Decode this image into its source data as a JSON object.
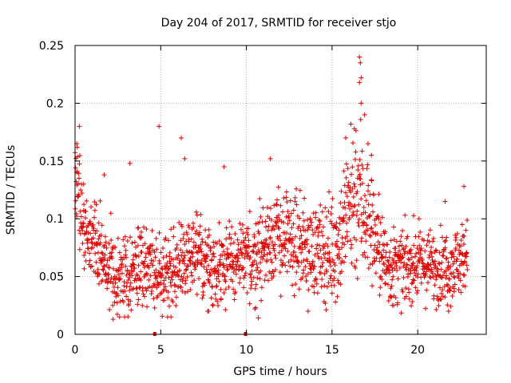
{
  "chart_data": {
    "type": "scatter",
    "title": "Day 204 of 2017, SRMTID for receiver stjo",
    "xlabel": "GPS time / hours",
    "ylabel": "SRMTID / TECUs",
    "xlim": [
      0,
      24
    ],
    "ylim": [
      0,
      0.25
    ],
    "x_ticks": [
      0,
      5,
      10,
      15,
      20
    ],
    "x_tick_labels": [
      "0",
      "5",
      "10",
      "15",
      "20"
    ],
    "y_ticks": [
      0,
      0.05,
      0.1,
      0.15,
      0.2,
      0.25
    ],
    "y_tick_labels": [
      "0",
      "0.05",
      "0.1",
      "0.15",
      "0.2",
      "0.25"
    ],
    "grid": true,
    "marker": "plus",
    "color": "#e00000",
    "data_end_hour": 22.9,
    "zero_points": [
      [
        4.65,
        0.0
      ],
      [
        9.95,
        0.0
      ]
    ],
    "profile": [
      [
        0.0,
        0.125
      ],
      [
        0.5,
        0.095
      ],
      [
        1.0,
        0.085
      ],
      [
        1.5,
        0.07
      ],
      [
        2.0,
        0.06
      ],
      [
        2.5,
        0.05
      ],
      [
        3.0,
        0.052
      ],
      [
        3.5,
        0.058
      ],
      [
        4.0,
        0.058
      ],
      [
        4.5,
        0.06
      ],
      [
        5.0,
        0.058
      ],
      [
        5.5,
        0.052
      ],
      [
        6.0,
        0.058
      ],
      [
        6.5,
        0.065
      ],
      [
        7.0,
        0.07
      ],
      [
        7.5,
        0.065
      ],
      [
        8.0,
        0.058
      ],
      [
        8.5,
        0.06
      ],
      [
        9.0,
        0.062
      ],
      [
        9.5,
        0.06
      ],
      [
        10.0,
        0.065
      ],
      [
        10.5,
        0.068
      ],
      [
        11.0,
        0.075
      ],
      [
        11.5,
        0.085
      ],
      [
        12.0,
        0.085
      ],
      [
        12.5,
        0.08
      ],
      [
        13.0,
        0.078
      ],
      [
        13.5,
        0.075
      ],
      [
        14.0,
        0.072
      ],
      [
        14.5,
        0.07
      ],
      [
        15.0,
        0.075
      ],
      [
        15.5,
        0.085
      ],
      [
        16.0,
        0.11
      ],
      [
        16.5,
        0.125
      ],
      [
        17.0,
        0.105
      ],
      [
        17.5,
        0.085
      ],
      [
        18.0,
        0.065
      ],
      [
        18.5,
        0.058
      ],
      [
        19.0,
        0.058
      ],
      [
        19.5,
        0.06
      ],
      [
        20.0,
        0.062
      ],
      [
        20.5,
        0.06
      ],
      [
        21.0,
        0.058
      ],
      [
        21.5,
        0.058
      ],
      [
        22.0,
        0.06
      ],
      [
        22.5,
        0.065
      ],
      [
        22.9,
        0.07
      ]
    ],
    "spread": [
      [
        0.0,
        0.03
      ],
      [
        1.0,
        0.022
      ],
      [
        2.5,
        0.02
      ],
      [
        8.0,
        0.02
      ],
      [
        11.0,
        0.025
      ],
      [
        14.0,
        0.022
      ],
      [
        15.5,
        0.03
      ],
      [
        16.5,
        0.045
      ],
      [
        17.5,
        0.025
      ],
      [
        19.0,
        0.018
      ],
      [
        22.9,
        0.018
      ]
    ],
    "highlights": [
      [
        0.1,
        0.165
      ],
      [
        0.25,
        0.18
      ],
      [
        0.1,
        0.14
      ],
      [
        0.2,
        0.12
      ],
      [
        4.9,
        0.18
      ],
      [
        6.2,
        0.17
      ],
      [
        6.4,
        0.152
      ],
      [
        3.2,
        0.148
      ],
      [
        8.7,
        0.145
      ],
      [
        11.4,
        0.152
      ],
      [
        16.6,
        0.24
      ],
      [
        16.65,
        0.235
      ],
      [
        16.7,
        0.222
      ],
      [
        16.6,
        0.218
      ],
      [
        16.7,
        0.2
      ],
      [
        16.1,
        0.182
      ],
      [
        16.3,
        0.178
      ],
      [
        17.1,
        0.165
      ],
      [
        15.8,
        0.17
      ],
      [
        16.9,
        0.19
      ],
      [
        17.3,
        0.155
      ],
      [
        22.7,
        0.128
      ],
      [
        21.6,
        0.115
      ],
      [
        0.5,
        0.13
      ],
      [
        1.7,
        0.138
      ],
      [
        2.2,
        0.025
      ],
      [
        2.6,
        0.015
      ],
      [
        7.8,
        0.02
      ],
      [
        10.5,
        0.022
      ],
      [
        13.6,
        0.02
      ],
      [
        18.6,
        0.025
      ],
      [
        21.8,
        0.02
      ],
      [
        5.6,
        0.015
      ],
      [
        3.7,
        0.03
      ],
      [
        15.2,
        0.028
      ]
    ]
  }
}
